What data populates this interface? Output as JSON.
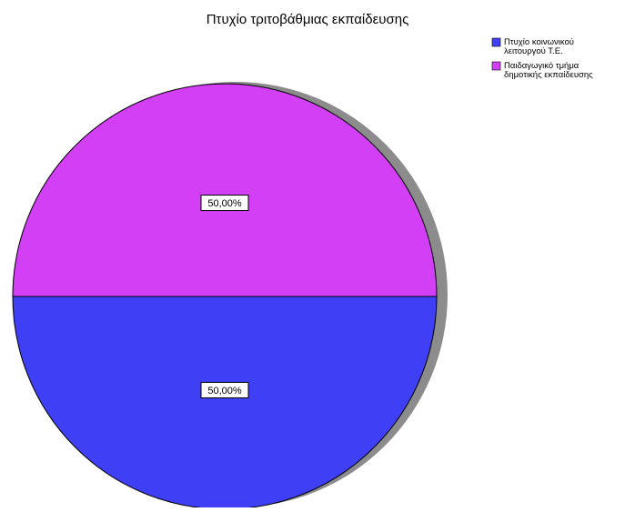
{
  "chart_data": {
    "type": "pie",
    "title": "Πτυχίο τριτοβάθμιας εκπαίδευσης",
    "slices": [
      {
        "name": "Πτυχίο κοινωνικού λειτουργού Τ.Ε.",
        "value": 50.0,
        "label": "50,00%",
        "color": "#3f3ff5"
      },
      {
        "name": "Παιδαγωγικό τμήμα δημοτικής εκπαίδευσης",
        "value": 50.0,
        "label": "50,00%",
        "color": "#d23ff5"
      }
    ],
    "legend": {
      "position": "top-right",
      "entries": [
        [
          "Πτυχίο κοινωνικού",
          "λειτουργού Τ.Ε."
        ],
        [
          "Παιδαγωγικό τμήμα",
          "δημοτικής εκπαίδευσης"
        ]
      ]
    },
    "shadow_color": "#8c8c8c",
    "outline_color": "#000000"
  }
}
